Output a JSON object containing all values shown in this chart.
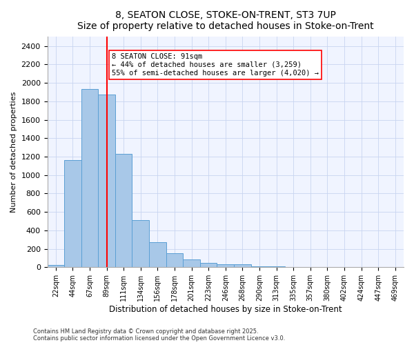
{
  "title": "8, SEATON CLOSE, STOKE-ON-TRENT, ST3 7UP",
  "subtitle": "Size of property relative to detached houses in Stoke-on-Trent",
  "xlabel": "Distribution of detached houses by size in Stoke-on-Trent",
  "ylabel": "Number of detached properties",
  "bar_labels": [
    "22sqm",
    "44sqm",
    "67sqm",
    "89sqm",
    "111sqm",
    "134sqm",
    "156sqm",
    "178sqm",
    "201sqm",
    "223sqm",
    "246sqm",
    "268sqm",
    "290sqm",
    "313sqm",
    "335sqm",
    "357sqm",
    "380sqm",
    "402sqm",
    "424sqm",
    "447sqm",
    "469sqm"
  ],
  "bar_values": [
    22,
    1160,
    1930,
    1870,
    1230,
    510,
    270,
    155,
    85,
    45,
    35,
    30,
    12,
    8,
    4,
    3,
    2,
    2,
    1,
    1,
    1
  ],
  "bar_color": "#a8c8e8",
  "bar_edge_color": "#5a9fd4",
  "red_line_x": 3,
  "annotation_title": "8 SEATON CLOSE: 91sqm",
  "annotation_line1": "← 44% of detached houses are smaller (3,259)",
  "annotation_line2": "55% of semi-detached houses are larger (4,020) →",
  "ylim": [
    0,
    2500
  ],
  "yticks": [
    0,
    200,
    400,
    600,
    800,
    1000,
    1200,
    1400,
    1600,
    1800,
    2000,
    2200,
    2400
  ],
  "footer_line1": "Contains HM Land Registry data © Crown copyright and database right 2025.",
  "footer_line2": "Contains public sector information licensed under the Open Government Licence v3.0.",
  "bg_color": "#f0f4ff",
  "grid_color": "#c8d4f0"
}
